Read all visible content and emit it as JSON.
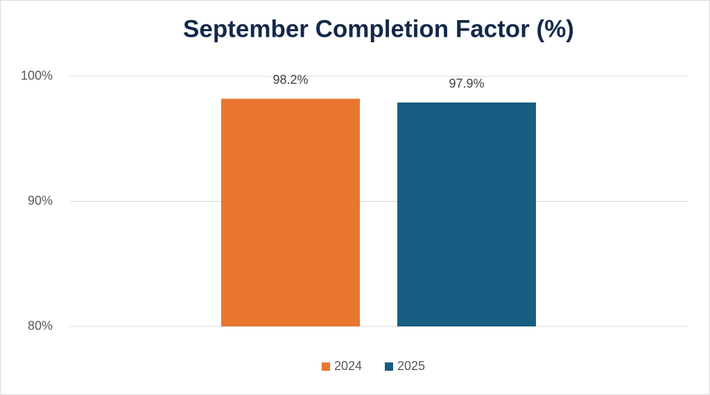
{
  "chart_data": {
    "type": "bar",
    "title": "September Completion Factor (%)",
    "categories": [
      null
    ],
    "series": [
      {
        "name": "2024",
        "color": "#E8762F",
        "values": [
          98.2
        ],
        "value_labels": [
          "98.2%"
        ]
      },
      {
        "name": "2025",
        "color": "#175E82",
        "values": [
          97.9
        ],
        "value_labels": [
          "97.9%"
        ]
      }
    ],
    "ylim": [
      80,
      100
    ],
    "yticks": [
      {
        "value": 80,
        "label": "80%"
      },
      {
        "value": 90,
        "label": "90%"
      },
      {
        "value": 100,
        "label": "100%"
      }
    ],
    "grid": true,
    "legend": "bottom"
  }
}
